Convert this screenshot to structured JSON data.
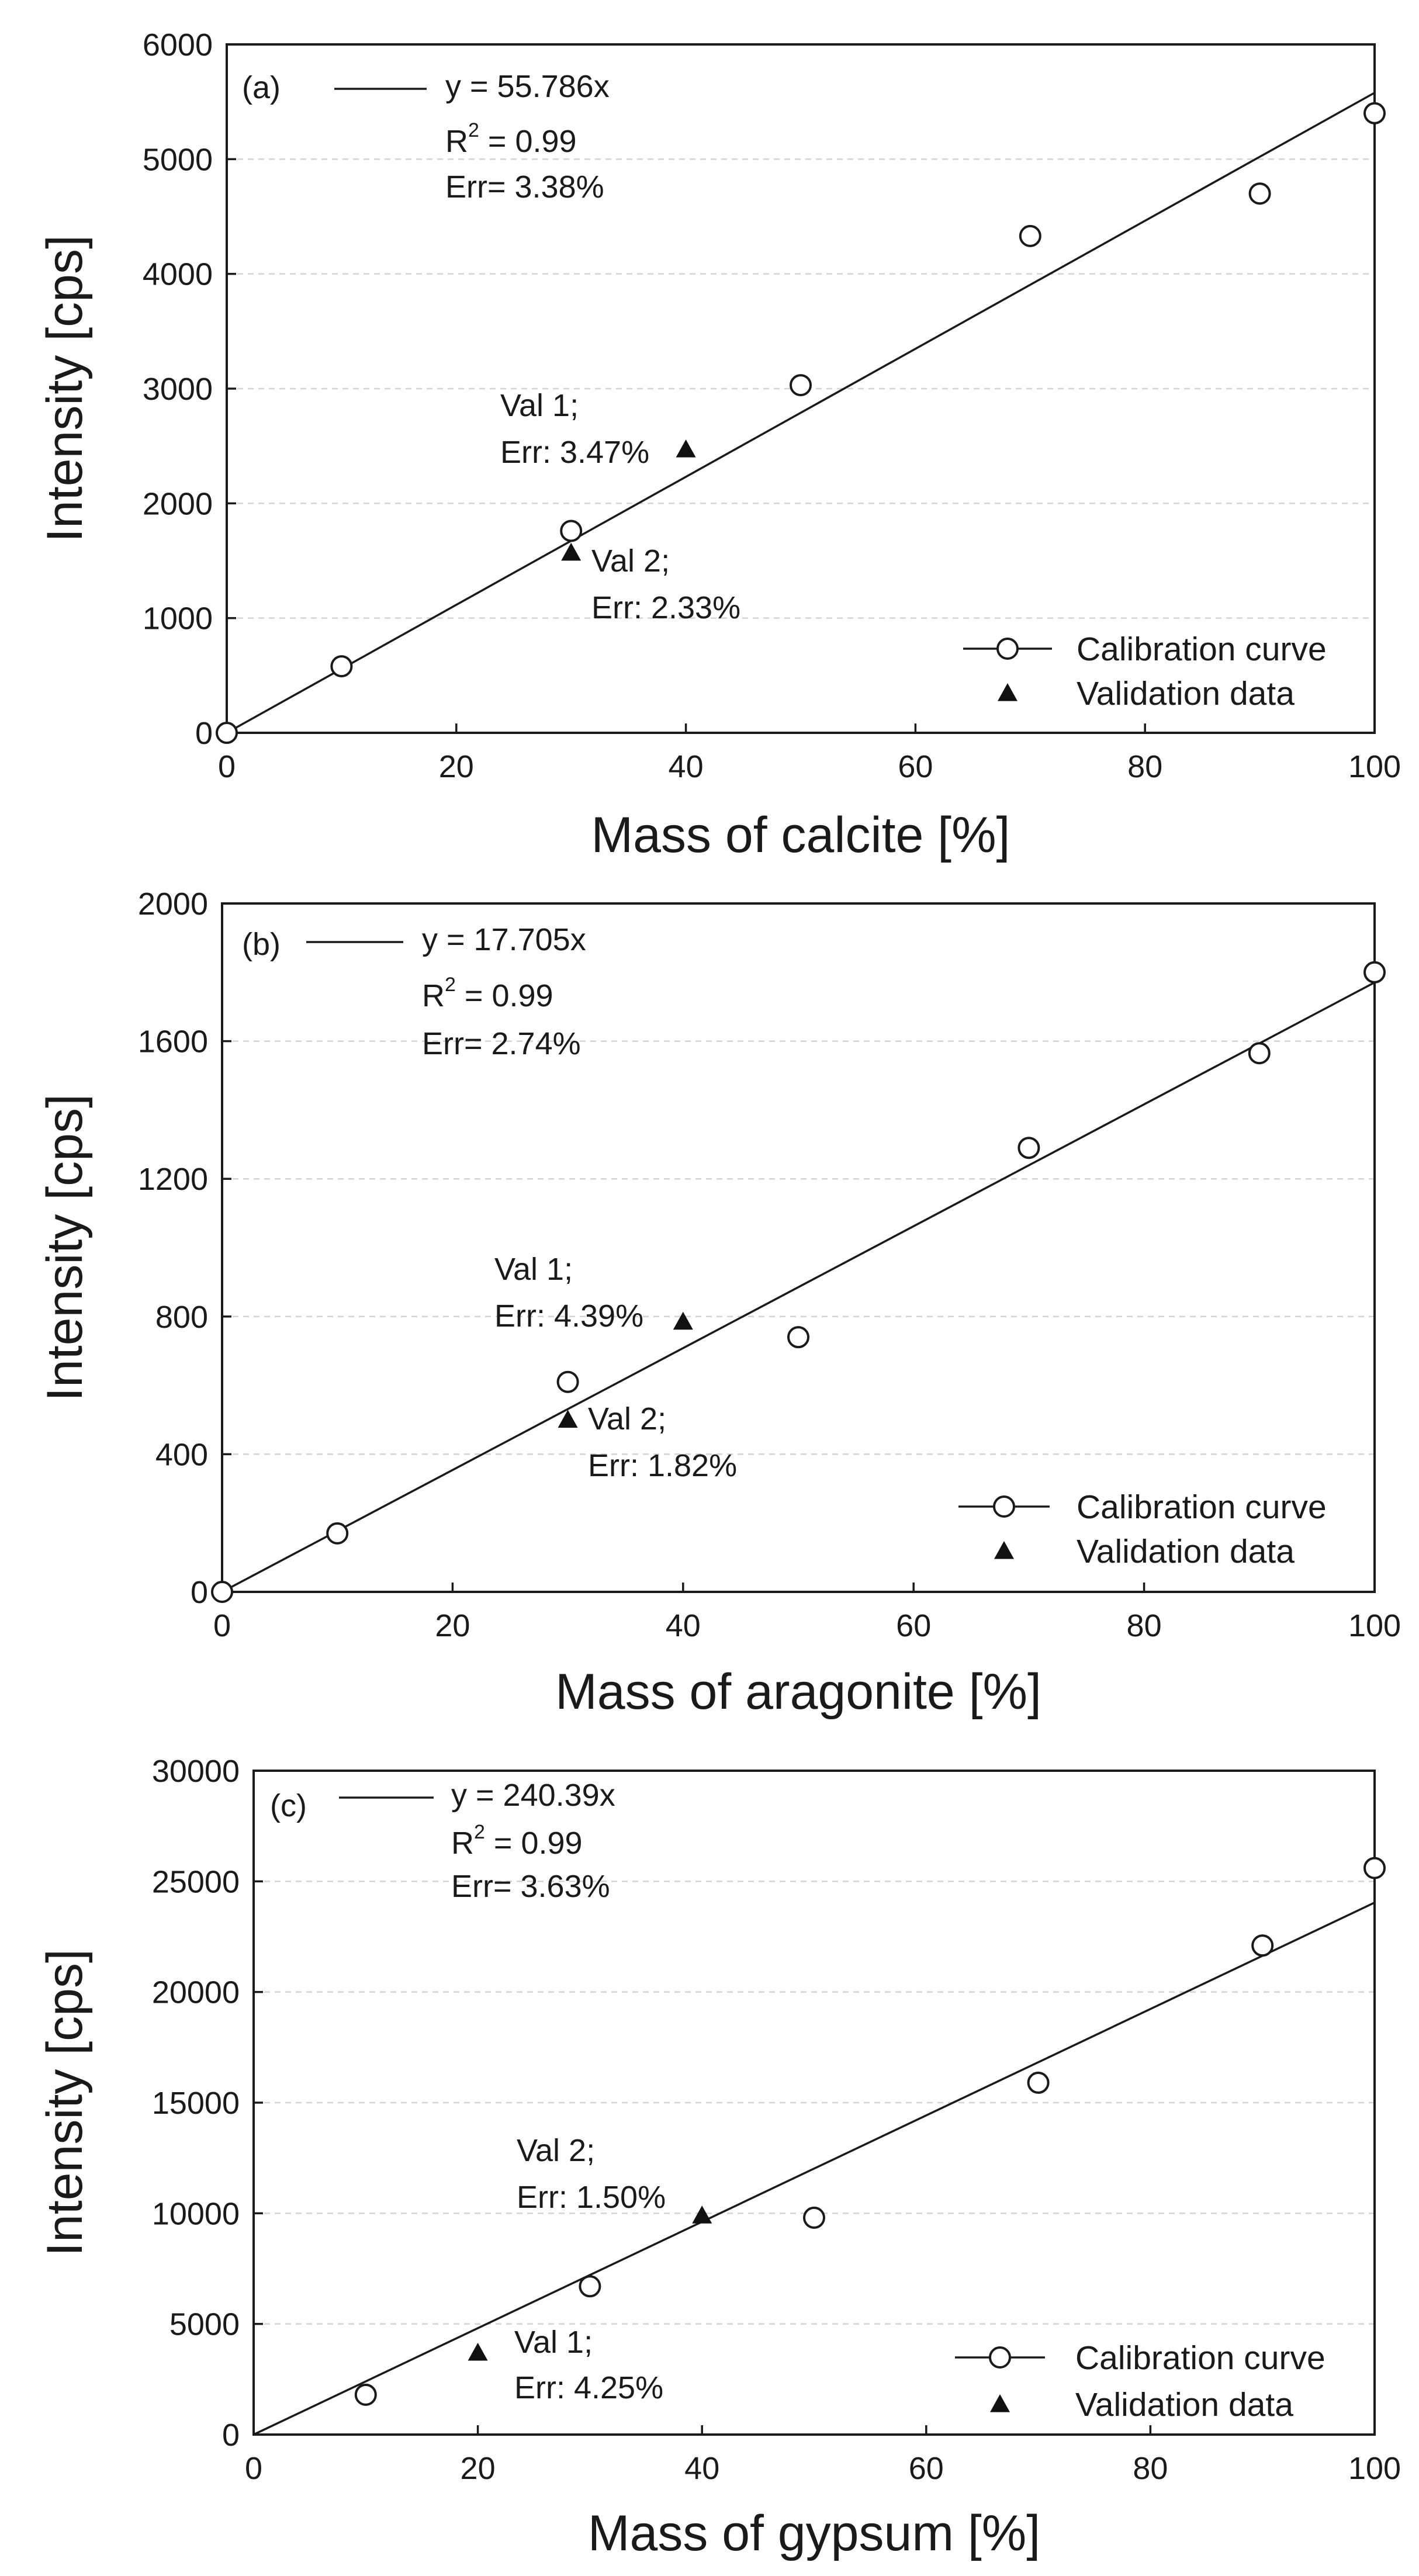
{
  "chart_data": [
    {
      "type": "scatter",
      "panel_label": "(a)",
      "xlabel": "Mass of calcite [%]",
      "ylabel": "Intensity [cps]",
      "xlim": [
        0,
        100
      ],
      "ylim": [
        0,
        6000
      ],
      "xticks": [
        0,
        20,
        40,
        60,
        80,
        100
      ],
      "yticks": [
        0,
        1000,
        2000,
        3000,
        4000,
        5000,
        6000
      ],
      "grid": "horizontal dashed",
      "series": [
        {
          "name": "Calibration curve",
          "marker": "open-circle",
          "x": [
            0,
            10,
            30,
            50,
            70,
            90,
            100
          ],
          "y": [
            0,
            580,
            1760,
            3030,
            4330,
            4700,
            5400
          ]
        },
        {
          "name": "Validation data",
          "marker": "filled-triangle",
          "x": [
            40,
            30
          ],
          "y": [
            2470,
            1570
          ]
        }
      ],
      "fit": {
        "slope": 55.786,
        "x_range": [
          0,
          100
        ]
      },
      "equation": {
        "line1": "y = 55.786x",
        "r2_prefix": "R",
        "r2_exp": "2",
        "r2_value": " = 0.99",
        "line3": "Err= 3.38%"
      },
      "annotations": [
        {
          "line1": "Val 1;",
          "line2": "Err: 3.47%"
        },
        {
          "line1": "Val 2;",
          "line2": "Err: 2.33%"
        }
      ],
      "legend_position": "bottom-right"
    },
    {
      "type": "scatter",
      "panel_label": "(b)",
      "xlabel": "Mass of aragonite [%]",
      "ylabel": "Intensity [cps]",
      "xlim": [
        0,
        100
      ],
      "ylim": [
        0,
        2000
      ],
      "xticks": [
        0,
        20,
        40,
        60,
        80,
        100
      ],
      "yticks": [
        0,
        400,
        800,
        1200,
        1600,
        2000
      ],
      "grid": "horizontal dashed",
      "series": [
        {
          "name": "Calibration curve",
          "marker": "open-circle",
          "x": [
            0,
            10,
            30,
            50,
            70,
            90,
            100
          ],
          "y": [
            0,
            170,
            610,
            740,
            1290,
            1565,
            1800
          ]
        },
        {
          "name": "Validation data",
          "marker": "filled-triangle",
          "x": [
            40,
            30
          ],
          "y": [
            785,
            500
          ]
        }
      ],
      "fit": {
        "slope": 17.705,
        "x_range": [
          0,
          100
        ]
      },
      "equation": {
        "line1": "y = 17.705x",
        "r2_prefix": "R",
        "r2_exp": "2",
        "r2_value": " = 0.99",
        "line3": "Err= 2.74%"
      },
      "annotations": [
        {
          "line1": "Val 1;",
          "line2": "Err: 4.39%"
        },
        {
          "line1": "Val 2;",
          "line2": "Err: 1.82%"
        }
      ],
      "legend_position": "bottom-right"
    },
    {
      "type": "scatter",
      "panel_label": "(c)",
      "xlabel": "Mass of gypsum [%]",
      "ylabel": "Intensity [cps]",
      "xlim": [
        0,
        100
      ],
      "ylim": [
        0,
        30000
      ],
      "xticks": [
        0,
        20,
        40,
        60,
        80,
        100
      ],
      "yticks": [
        0,
        5000,
        10000,
        15000,
        20000,
        25000,
        30000
      ],
      "grid": "horizontal dashed",
      "series": [
        {
          "name": "Calibration curve",
          "marker": "open-circle",
          "x": [
            10,
            30,
            50,
            70,
            90,
            100
          ],
          "y": [
            1800,
            6700,
            9800,
            15900,
            22100,
            25600
          ]
        },
        {
          "name": "Validation data",
          "marker": "filled-triangle",
          "x": [
            20,
            40
          ],
          "y": [
            3700,
            9900
          ]
        }
      ],
      "fit": {
        "slope": 240.39,
        "x_range": [
          0,
          100
        ]
      },
      "equation": {
        "line1": "y = 240.39x",
        "r2_prefix": "R",
        "r2_exp": "2",
        "r2_value": " = 0.99",
        "line3": "Err= 3.63%"
      },
      "annotations": [
        {
          "line1": "Val 1;",
          "line2": "Err: 4.25%"
        },
        {
          "line1": "Val 2;",
          "line2": "Err: 1.50%"
        }
      ],
      "legend_position": "bottom-right"
    }
  ]
}
